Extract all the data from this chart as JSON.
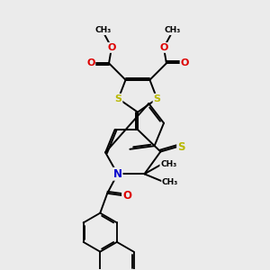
{
  "bg_color": "#ebebeb",
  "bond_color": "#000000",
  "bond_width": 1.4,
  "S_color": "#b8b800",
  "N_color": "#0000cc",
  "O_color": "#dd0000",
  "figsize": [
    3.0,
    3.0
  ],
  "dpi": 100,
  "xlim": [
    0,
    10
  ],
  "ylim": [
    0,
    10
  ]
}
